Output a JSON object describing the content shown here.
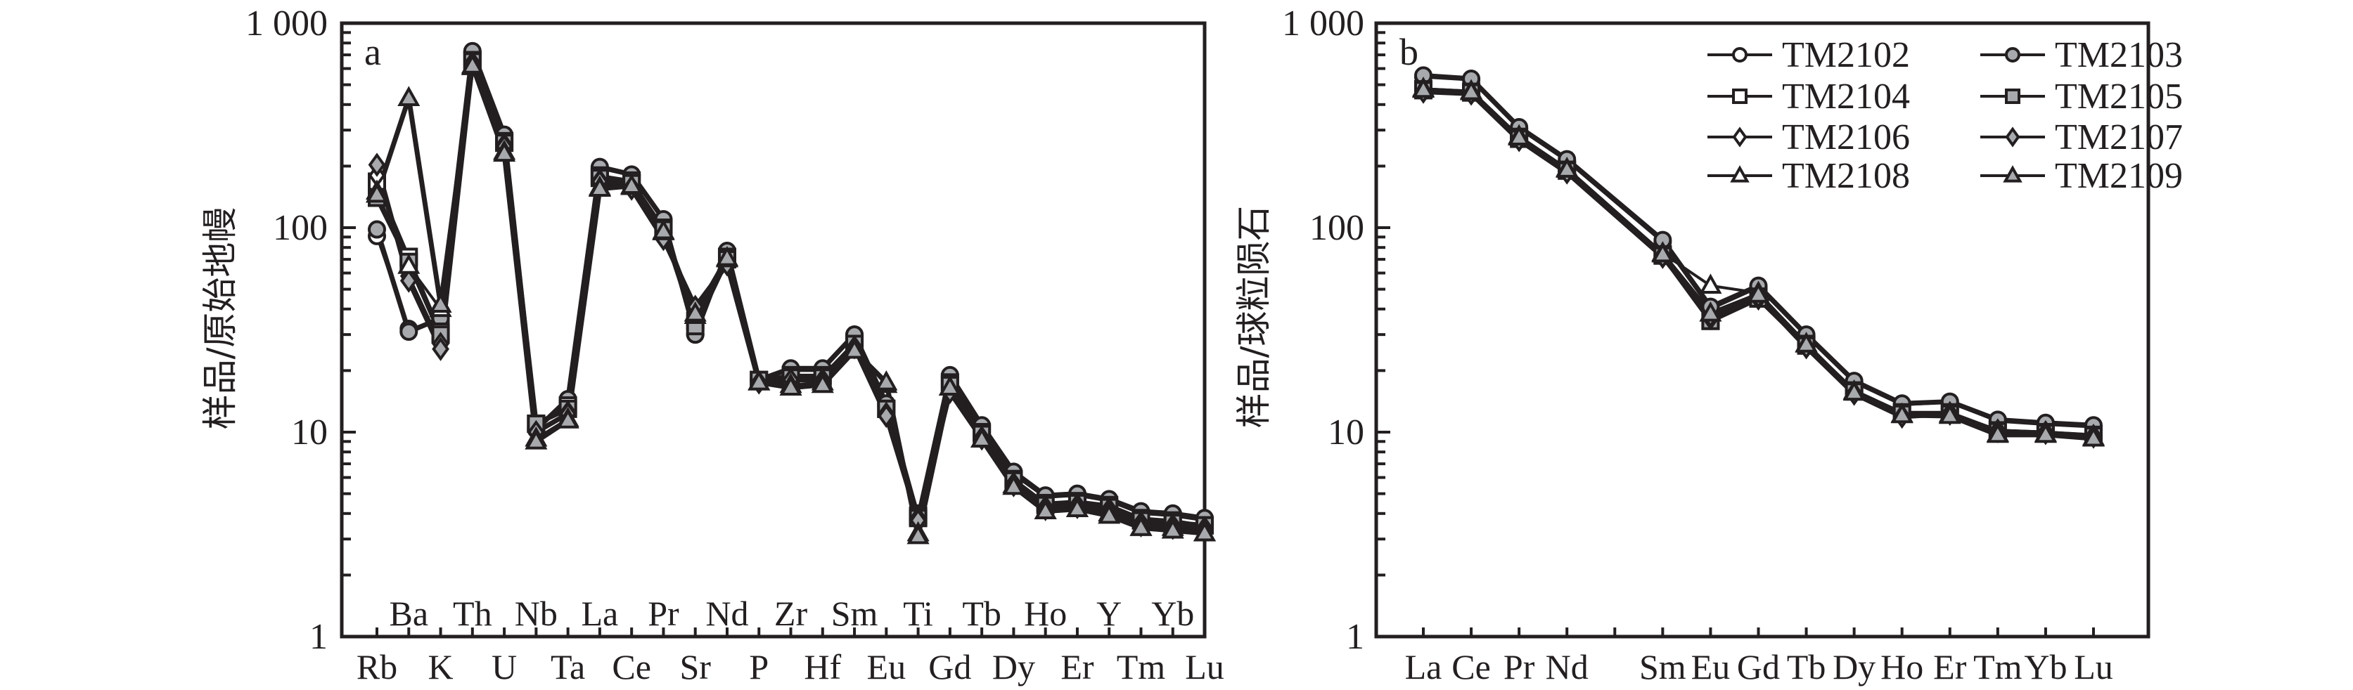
{
  "colors": {
    "ink": "#231f20",
    "fill_gray": "#a7a9ac",
    "background": "#ffffff"
  },
  "legend": {
    "placement": "top-right of panel b",
    "entries": [
      {
        "name": "TM2102",
        "marker": "circle",
        "filled": false
      },
      {
        "name": "TM2103",
        "marker": "circle",
        "filled": true
      },
      {
        "name": "TM2104",
        "marker": "square",
        "filled": false
      },
      {
        "name": "TM2105",
        "marker": "square",
        "filled": true
      },
      {
        "name": "TM2106",
        "marker": "diamond",
        "filled": false
      },
      {
        "name": "TM2107",
        "marker": "diamond",
        "filled": true
      },
      {
        "name": "TM2108",
        "marker": "triangle",
        "filled": false
      },
      {
        "name": "TM2109",
        "marker": "triangle",
        "filled": true
      }
    ]
  },
  "chart_data": [
    {
      "type": "line",
      "panel_label": "a",
      "title": "",
      "xlabel": "",
      "ylabel": "样品/原始地幔",
      "yscale": "log",
      "ylim": [
        1,
        1000
      ],
      "yticks": [
        1,
        10,
        100,
        1000
      ],
      "ytick_labels": [
        "1",
        "10",
        "100",
        "1 000"
      ],
      "grid": false,
      "categories": [
        "Rb",
        "Ba",
        "K",
        "Th",
        "U",
        "Nb",
        "Ta",
        "La",
        "Ce",
        "Pr",
        "Sr",
        "Nd",
        "P",
        "Zr",
        "Hf",
        "Sm",
        "Eu",
        "Ti",
        "Gd",
        "Tb",
        "Dy",
        "Ho",
        "Er",
        "Y",
        "Tm",
        "Yb",
        "Lu"
      ],
      "series": [
        {
          "name": "TM2102",
          "values": [
            91,
            32,
            35,
            720,
            280,
            10.5,
            14,
            195,
            180,
            108,
            30,
            76,
            18,
            20,
            20,
            30,
            13.5,
            4.0,
            18.5,
            10.5,
            6.2,
            4.8,
            4.9,
            4.6,
            4.0,
            3.9,
            3.7
          ]
        },
        {
          "name": "TM2103",
          "values": [
            98,
            31,
            36,
            730,
            285,
            10.3,
            14.5,
            198,
            182,
            110,
            30,
            77,
            18,
            20.5,
            20.5,
            30,
            13.8,
            3.8,
            19,
            10.8,
            6.4,
            4.9,
            5.0,
            4.7,
            4.1,
            4.0,
            3.8
          ]
        },
        {
          "name": "TM2104",
          "values": [
            168,
            72,
            31,
            660,
            265,
            11,
            13.5,
            180,
            170,
            100,
            35,
            72,
            18,
            19,
            19,
            27,
            13,
            3.9,
            17.5,
            10,
            5.9,
            4.5,
            4.6,
            4.4,
            3.8,
            3.7,
            3.5
          ]
        },
        {
          "name": "TM2105",
          "values": [
            140,
            68,
            30,
            650,
            260,
            11,
            13,
            175,
            165,
            98,
            33,
            70,
            18,
            18.5,
            18.5,
            27,
            13,
            3.8,
            17,
            9.8,
            5.8,
            4.4,
            4.5,
            4.3,
            3.7,
            3.6,
            3.5
          ]
        },
        {
          "name": "TM2106",
          "values": [
            180,
            58,
            27,
            640,
            255,
            10,
            12.5,
            170,
            158,
            92,
            40,
            67,
            17.5,
            18,
            18,
            26,
            12.3,
            3.8,
            16,
            9.4,
            5.6,
            4.3,
            4.4,
            4.2,
            3.6,
            3.5,
            3.4
          ]
        },
        {
          "name": "TM2107",
          "values": [
            203,
            55,
            25.5,
            640,
            250,
            10,
            12.3,
            168,
            155,
            88,
            41,
            66,
            17.5,
            18,
            18,
            26,
            12,
            3.7,
            15.7,
            9.3,
            5.5,
            4.2,
            4.3,
            4.1,
            3.5,
            3.4,
            3.3
          ]
        },
        {
          "name": "TM2108",
          "values": [
            150,
            65,
            40,
            610,
            235,
            9.3,
            11.6,
            157,
            158,
            95,
            37,
            70,
            17.5,
            17,
            17.5,
            25.5,
            17,
            3.2,
            16.5,
            9.2,
            5.5,
            4.1,
            4.2,
            4.0,
            3.4,
            3.4,
            3.2
          ]
        },
        {
          "name": "TM2109",
          "values": [
            145,
            430,
            42,
            620,
            230,
            9.0,
            11.4,
            155,
            160,
            96,
            38,
            71,
            17.5,
            16.5,
            17,
            25,
            17.5,
            3.1,
            16.5,
            9.2,
            5.4,
            4.1,
            4.2,
            3.9,
            3.4,
            3.3,
            3.2
          ]
        }
      ]
    },
    {
      "type": "line",
      "panel_label": "b",
      "title": "",
      "xlabel": "",
      "ylabel": "样品/球粒陨石",
      "yscale": "log",
      "ylim": [
        1,
        1000
      ],
      "yticks": [
        1,
        10,
        100,
        1000
      ],
      "ytick_labels": [
        "1",
        "10",
        "100",
        "1 000"
      ],
      "grid": false,
      "categories": [
        "La",
        "Ce",
        "Pr",
        "Nd",
        "",
        "Sm",
        "Eu",
        "Gd",
        "Tb",
        "Dy",
        "Ho",
        "Er",
        "Tm",
        "Yb",
        "Lu"
      ],
      "series": [
        {
          "name": "TM2102",
          "values": [
            545,
            528,
            305,
            212,
            null,
            85,
            40,
            51,
            29.5,
            17.5,
            13.6,
            14,
            11.3,
            10.9,
            10.6
          ]
        },
        {
          "name": "TM2103",
          "values": [
            555,
            535,
            310,
            216,
            null,
            87,
            41,
            52,
            30,
            17.8,
            13.8,
            14.1,
            11.5,
            11.1,
            10.8
          ]
        },
        {
          "name": "TM2104",
          "values": [
            475,
            462,
            278,
            192,
            null,
            74,
            35,
            46,
            27,
            16,
            12.5,
            12.5,
            10.2,
            10,
            9.7
          ]
        },
        {
          "name": "TM2105",
          "values": [
            470,
            458,
            272,
            190,
            null,
            73,
            35,
            45,
            26.5,
            15.8,
            12.3,
            12.3,
            10.1,
            9.9,
            9.6
          ]
        },
        {
          "name": "TM2106",
          "values": [
            465,
            455,
            270,
            188,
            null,
            72,
            36,
            45,
            26,
            15.5,
            12,
            12.4,
            10.2,
            10,
            9.6
          ]
        },
        {
          "name": "TM2107",
          "values": [
            462,
            452,
            268,
            186,
            null,
            72,
            37,
            46,
            26,
            15.4,
            11.9,
            12.3,
            10.1,
            9.9,
            9.5
          ]
        },
        {
          "name": "TM2108",
          "values": [
            478,
            465,
            280,
            194,
            null,
            75,
            52,
            48,
            27,
            15.8,
            12.2,
            12.2,
            9.8,
            9.8,
            9.4
          ]
        },
        {
          "name": "TM2109",
          "values": [
            472,
            460,
            276,
            192,
            null,
            74,
            38,
            47,
            26.8,
            15.6,
            12.1,
            12.0,
            9.7,
            9.7,
            9.3
          ]
        }
      ]
    }
  ]
}
